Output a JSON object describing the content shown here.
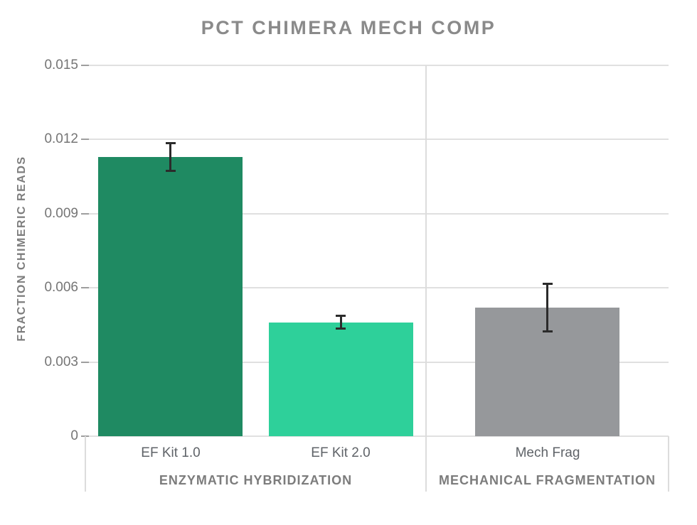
{
  "title": "PCT CHIMERA MECH COMP",
  "y_axis": {
    "label": "FRACTION CHIMERIC READS",
    "ticks": [
      "0.015",
      "0.012",
      "0.009",
      "0.006",
      "0.003",
      "0"
    ]
  },
  "chart_data": {
    "type": "bar",
    "title": "PCT CHIMERA MECH COMP",
    "xlabel": "",
    "ylabel": "FRACTION CHIMERIC READS",
    "ylim": [
      0,
      0.015
    ],
    "grid": true,
    "legend": "none",
    "yticks": [
      {
        "value": 0.015,
        "label": "0.015"
      },
      {
        "value": 0.012,
        "label": "0.012"
      },
      {
        "value": 0.009,
        "label": "0.009"
      },
      {
        "value": 0.006,
        "label": "0.006"
      },
      {
        "value": 0.003,
        "label": "0.003"
      },
      {
        "value": 0,
        "label": "0"
      }
    ],
    "groups": [
      {
        "label": "ENZYMATIC HYBRIDIZATION",
        "bars": [
          {
            "category": "EF Kit 1.0",
            "value": 0.0113,
            "error_low": 0.0107,
            "error_high": 0.0119,
            "color": "#1f8a62"
          },
          {
            "category": "EF Kit 2.0",
            "value": 0.0046,
            "error_low": 0.0043,
            "error_high": 0.0049,
            "color": "#2ed09a"
          }
        ]
      },
      {
        "label": "MECHANICAL FRAGMENTATION",
        "bars": [
          {
            "category": "Mech Frag",
            "value": 0.0052,
            "error_low": 0.0042,
            "error_high": 0.0062,
            "color": "#96989b"
          }
        ]
      }
    ]
  },
  "colors": {
    "background": "#ffffff",
    "title": "#8a8a8a",
    "axis_label": "#7d7d7d",
    "tick_label": "#757575",
    "x_tick_label": "#5f6368",
    "group_label": "#7c7c7c",
    "gridline": "#e0e0e0",
    "tick_mark": "#9e9e9e",
    "divider": "#dcdcdc",
    "error_bar": "#2b2b2b"
  }
}
